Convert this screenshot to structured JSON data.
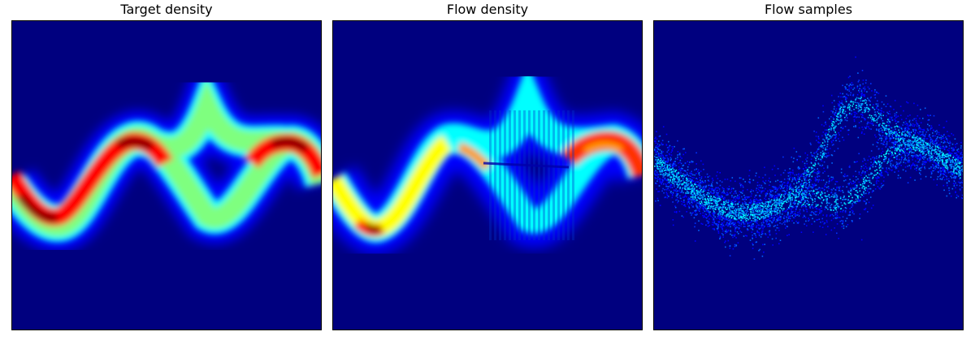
{
  "chart_data": [
    {
      "type": "heatmap",
      "title": "Target density",
      "colormap": "jet",
      "background_color": "#00007f",
      "axes_visible": false,
      "grid": false,
      "density": "two sinusoidal ridges crossing, the lower branch brightest at the outer crests",
      "peak_color": "#7f0000"
    },
    {
      "type": "heatmap",
      "title": "Flow density",
      "colormap": "jet",
      "background_color": "#00007f",
      "axes_visible": false,
      "grid": false,
      "density": "learned approximation of the target ridges with vertical stripe artifacts in the middle",
      "peak_color": "#7f0000"
    },
    {
      "type": "heatmap",
      "title": "Flow samples",
      "colormap": "jet",
      "background_color": "#00007f",
      "axes_visible": false,
      "grid": false,
      "density": "noisy 2D histogram of flow samples following the same ridge shape",
      "peak_color": "#80ffff"
    }
  ]
}
